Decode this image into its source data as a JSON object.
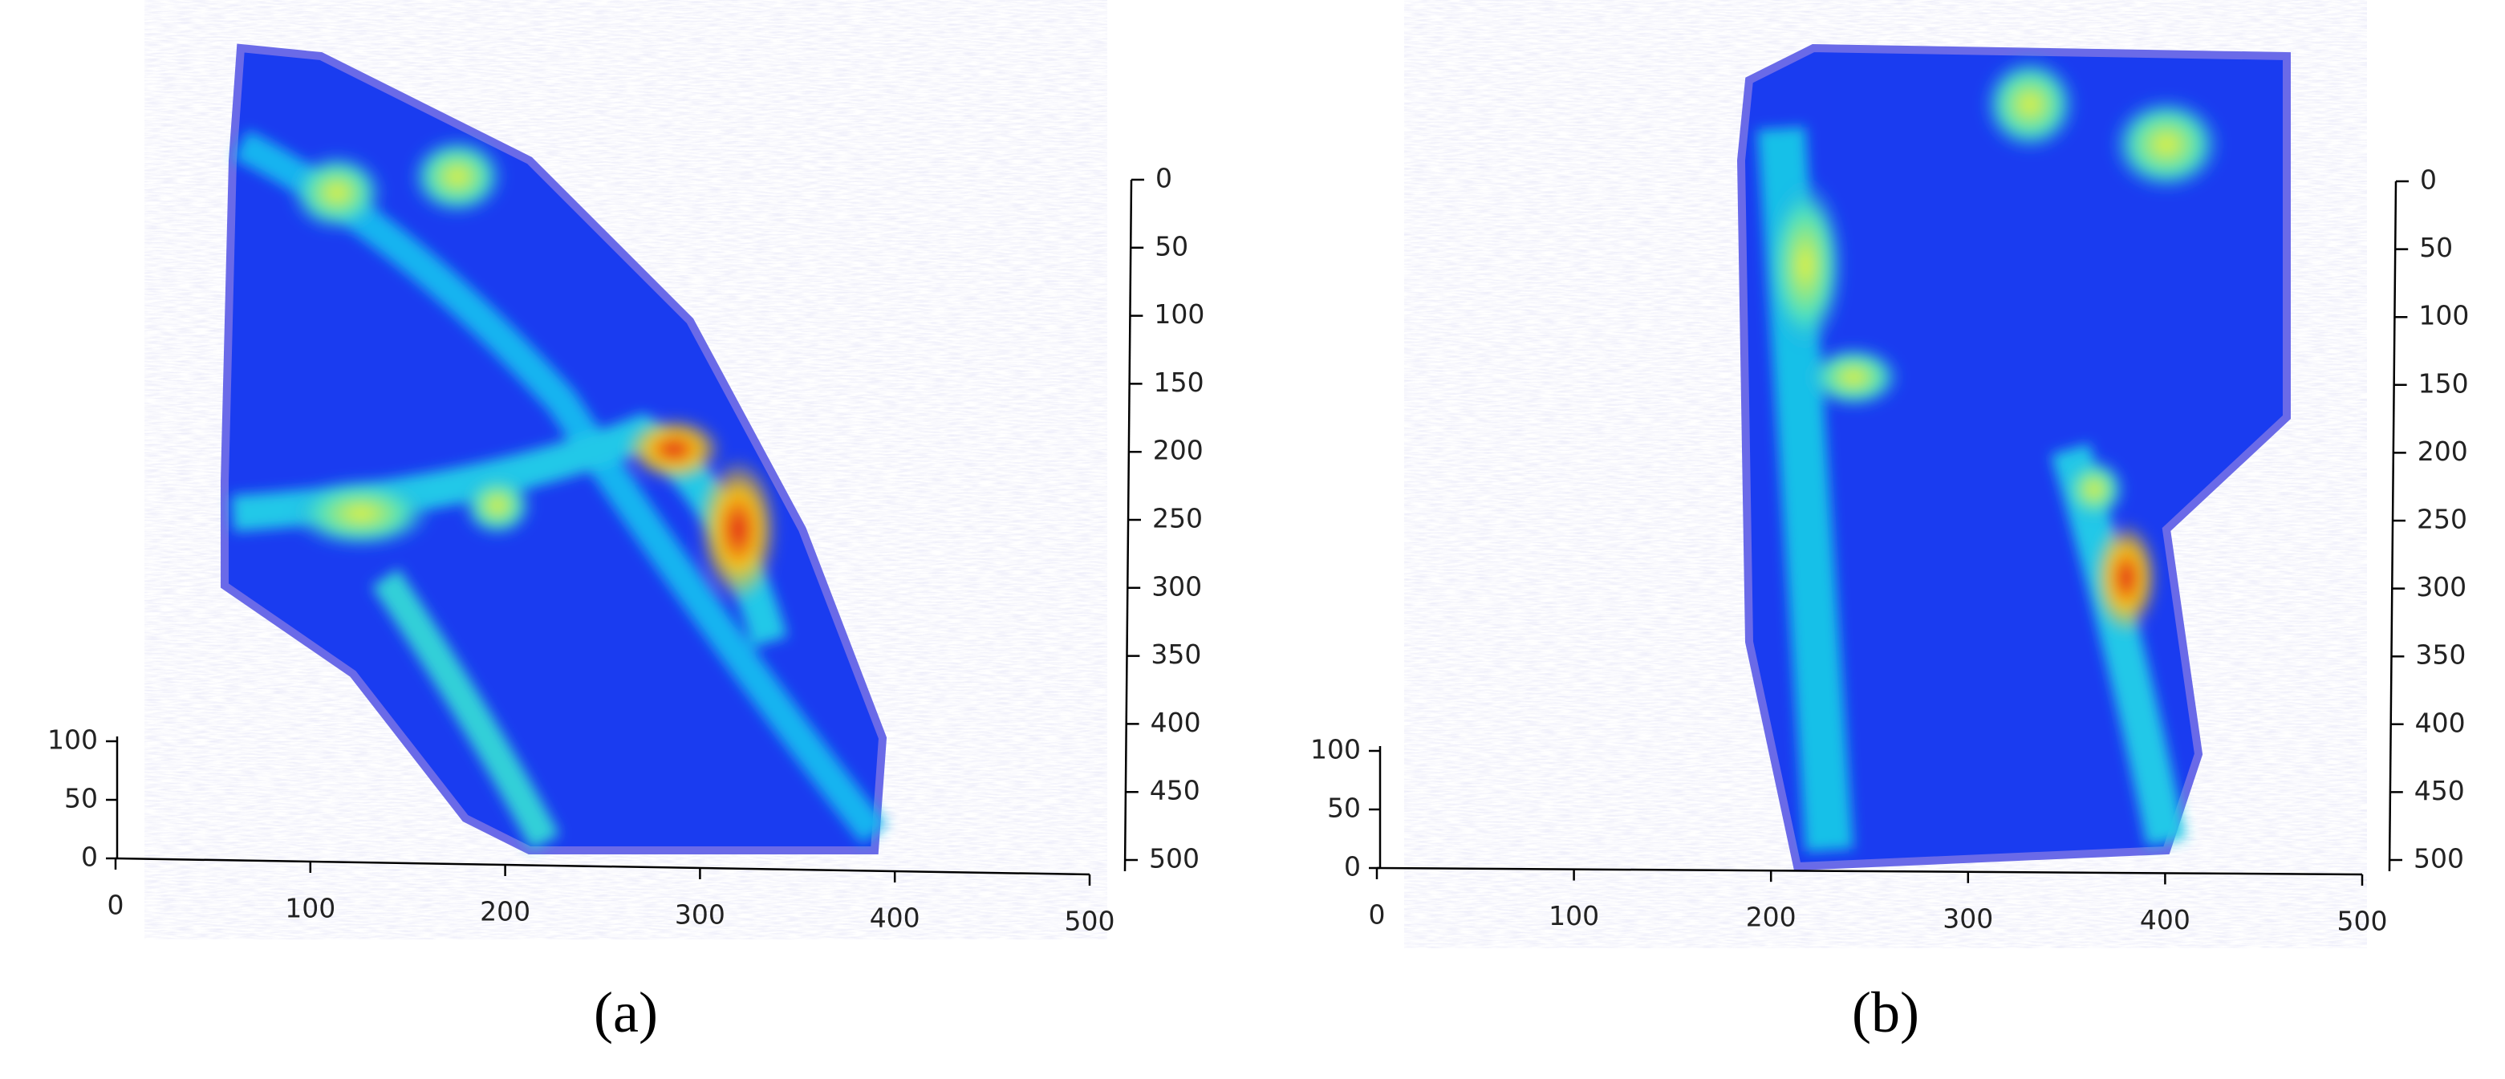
{
  "panels": [
    {
      "label": "(a)",
      "x_ticks": [
        0,
        100,
        200,
        300,
        400,
        500
      ],
      "y_ticks": [
        0,
        50,
        100,
        150,
        200,
        250,
        300,
        350,
        400,
        450,
        500
      ],
      "z_ticks": [
        0,
        50,
        100
      ]
    },
    {
      "label": "(b)",
      "x_ticks": [
        0,
        100,
        200,
        300,
        400,
        500
      ],
      "y_ticks": [
        0,
        50,
        100,
        150,
        200,
        250,
        300,
        350,
        400,
        450,
        500
      ],
      "z_ticks": [
        0,
        50,
        100
      ]
    }
  ]
}
